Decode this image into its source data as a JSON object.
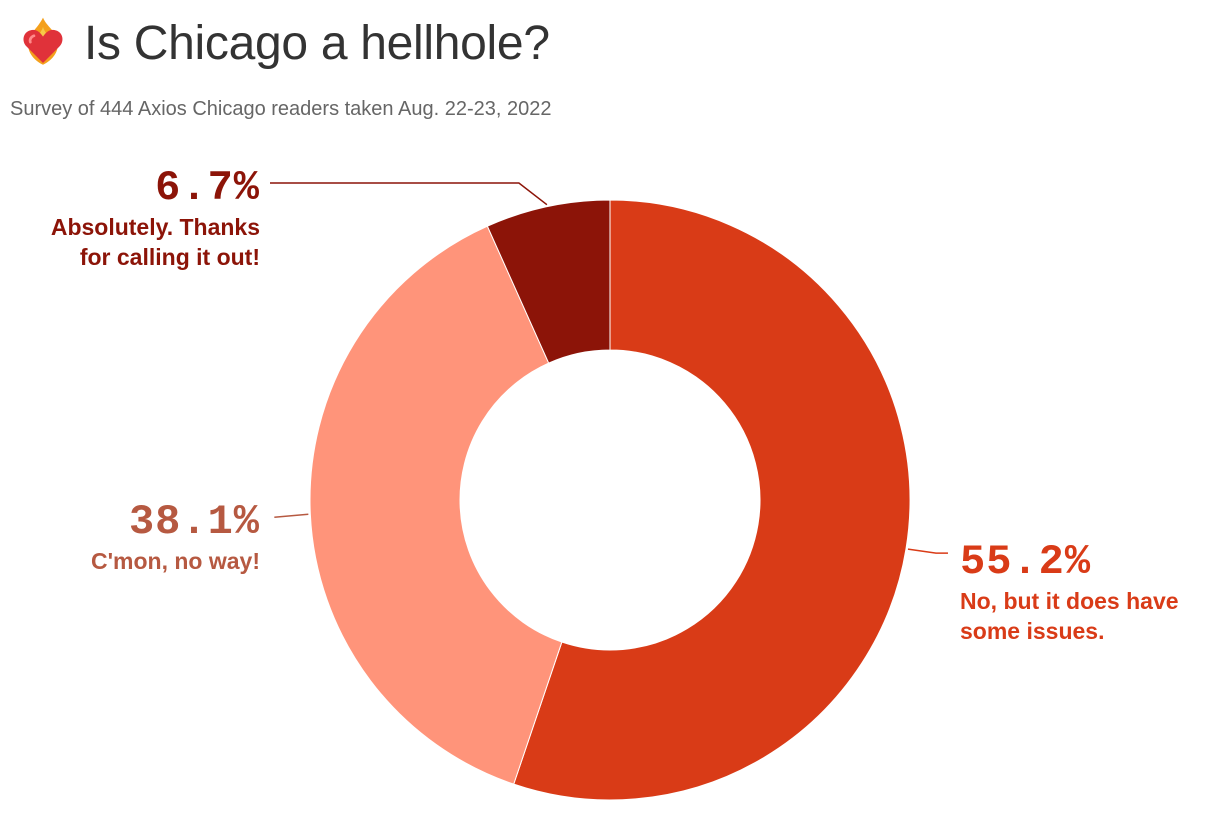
{
  "header": {
    "title": "Is Chicago a hellhole?",
    "subtitle": "Survey of 444 Axios Chicago readers taken Aug. 22-23, 2022",
    "title_icon": "fire-heart-icon"
  },
  "chart_data": {
    "type": "pie",
    "variant": "donut",
    "title": "Is Chicago a hellhole?",
    "subtitle": "Survey of 444 Axios Chicago readers taken Aug. 22-23, 2022",
    "slices": [
      {
        "value": 55.2,
        "pct_label": "55.2%",
        "label_lines": [
          "No, but it does have",
          "some issues."
        ],
        "color": "#d93b17"
      },
      {
        "value": 38.1,
        "pct_label": "38.1%",
        "label_lines": [
          "C'mon, no way!"
        ],
        "color": "#ff947a",
        "text_color": "#b65941"
      },
      {
        "value": 6.7,
        "pct_label": "6.7%",
        "label_lines": [
          "Absolutely. Thanks",
          "for calling it out!"
        ],
        "color": "#8c1408"
      }
    ],
    "legend": "direct labels"
  }
}
